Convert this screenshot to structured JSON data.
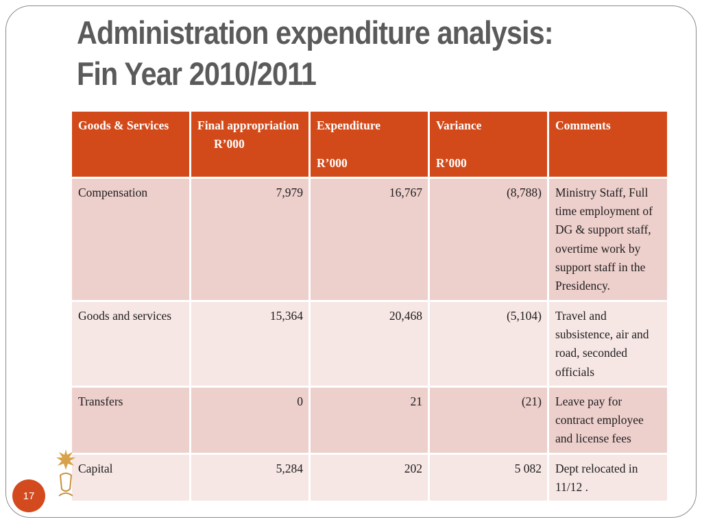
{
  "slide": {
    "title_line1": "Administration expenditure analysis:",
    "title_line2": "Fin Year 2010/2011",
    "page_number": "17",
    "brand_color": "#d24a1a"
  },
  "table": {
    "headers": {
      "col1": "Goods & Services",
      "col2": "Final appropriation",
      "col2_unit": "R’000",
      "col3": "Expenditure",
      "col3_unit": "R’000",
      "col4": "Variance",
      "col4_unit": "R’000",
      "col5": "Comments"
    },
    "rows": [
      {
        "item": "Compensation",
        "appropriation": "7,979",
        "expenditure": "16,767",
        "variance": "(8,788)",
        "comment": "Ministry Staff, Full time employment of DG & support staff, overtime work by support staff in the Presidency."
      },
      {
        "item": "Goods and services",
        "appropriation": "15,364",
        "expenditure": "20,468",
        "variance": "(5,104)",
        "comment": "Travel and subsistence, air and road, seconded officials"
      },
      {
        "item": "Transfers",
        "appropriation": "0",
        "expenditure": "21",
        "variance": "(21)",
        "comment": "Leave pay for contract employee and license fees"
      },
      {
        "item": "Capital",
        "appropriation": "5,284",
        "expenditure": "202",
        "variance": "5 082",
        "comment": "Dept relocated in 11/12 ."
      }
    ]
  }
}
